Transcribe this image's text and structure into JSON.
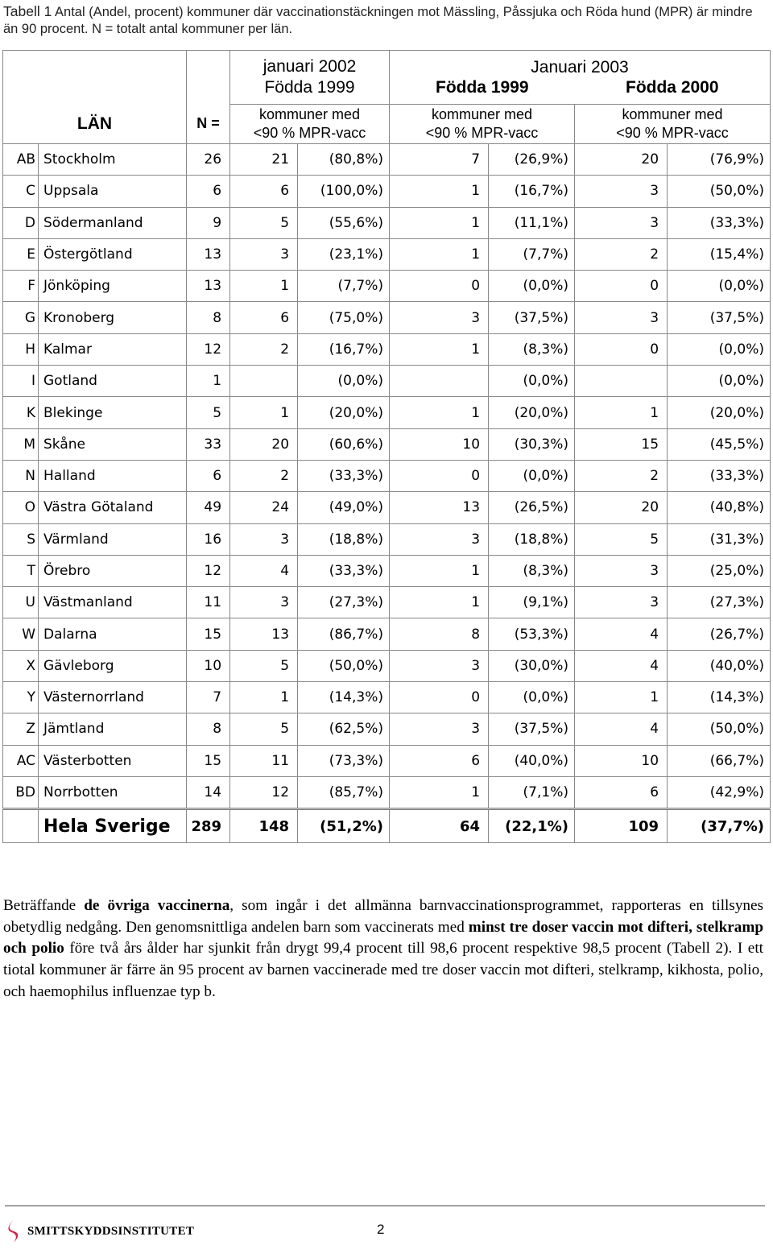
{
  "caption": {
    "label": "Tabell 1",
    "text": "Antal (Andel, procent) kommuner där vaccinationstäckningen mot Mässling, Påssjuka och Röda hund (MPR) är mindre än 90 procent. N = totalt antal kommuner per län."
  },
  "table": {
    "header": {
      "year_2002": "januari 2002",
      "year_2002_born": "Födda 1999",
      "year_2003": "Januari 2003",
      "year_2003_born_1999": "Födda 1999",
      "year_2003_born_2000": "Födda 2000",
      "lan": "LÄN",
      "n": "N =",
      "sub_line1": "kommuner med",
      "sub_line2": "<90 % MPR-vacc"
    },
    "rows": [
      {
        "code": "AB",
        "name": "Stockholm",
        "n": "26",
        "n1": "21",
        "p1": "(80,8%)",
        "n2": "7",
        "p2": "(26,9%)",
        "n3": "20",
        "p3": "(76,9%)"
      },
      {
        "code": "C",
        "name": "Uppsala",
        "n": "6",
        "n1": "6",
        "p1": "(100,0%)",
        "n2": "1",
        "p2": "(16,7%)",
        "n3": "3",
        "p3": "(50,0%)"
      },
      {
        "code": "D",
        "name": "Södermanland",
        "n": "9",
        "n1": "5",
        "p1": "(55,6%)",
        "n2": "1",
        "p2": "(11,1%)",
        "n3": "3",
        "p3": "(33,3%)"
      },
      {
        "code": "E",
        "name": "Östergötland",
        "n": "13",
        "n1": "3",
        "p1": "(23,1%)",
        "n2": "1",
        "p2": "(7,7%)",
        "n3": "2",
        "p3": "(15,4%)"
      },
      {
        "code": "F",
        "name": "Jönköping",
        "n": "13",
        "n1": "1",
        "p1": "(7,7%)",
        "n2": "0",
        "p2": "(0,0%)",
        "n3": "0",
        "p3": "(0,0%)"
      },
      {
        "code": "G",
        "name": "Kronoberg",
        "n": "8",
        "n1": "6",
        "p1": "(75,0%)",
        "n2": "3",
        "p2": "(37,5%)",
        "n3": "3",
        "p3": "(37,5%)"
      },
      {
        "code": "H",
        "name": "Kalmar",
        "n": "12",
        "n1": "2",
        "p1": "(16,7%)",
        "n2": "1",
        "p2": "(8,3%)",
        "n3": "0",
        "p3": "(0,0%)"
      },
      {
        "code": "I",
        "name": "Gotland",
        "n": "1",
        "n1": "",
        "p1": "(0,0%)",
        "n2": "",
        "p2": "(0,0%)",
        "n3": "",
        "p3": "(0,0%)"
      },
      {
        "code": "K",
        "name": "Blekinge",
        "n": "5",
        "n1": "1",
        "p1": "(20,0%)",
        "n2": "1",
        "p2": "(20,0%)",
        "n3": "1",
        "p3": "(20,0%)"
      },
      {
        "code": "M",
        "name": "Skåne",
        "n": "33",
        "n1": "20",
        "p1": "(60,6%)",
        "n2": "10",
        "p2": "(30,3%)",
        "n3": "15",
        "p3": "(45,5%)"
      },
      {
        "code": "N",
        "name": "Halland",
        "n": "6",
        "n1": "2",
        "p1": "(33,3%)",
        "n2": "0",
        "p2": "(0,0%)",
        "n3": "2",
        "p3": "(33,3%)"
      },
      {
        "code": "O",
        "name": "Västra Götaland",
        "n": "49",
        "n1": "24",
        "p1": "(49,0%)",
        "n2": "13",
        "p2": "(26,5%)",
        "n3": "20",
        "p3": "(40,8%)"
      },
      {
        "code": "S",
        "name": "Värmland",
        "n": "16",
        "n1": "3",
        "p1": "(18,8%)",
        "n2": "3",
        "p2": "(18,8%)",
        "n3": "5",
        "p3": "(31,3%)"
      },
      {
        "code": "T",
        "name": "Örebro",
        "n": "12",
        "n1": "4",
        "p1": "(33,3%)",
        "n2": "1",
        "p2": "(8,3%)",
        "n3": "3",
        "p3": "(25,0%)"
      },
      {
        "code": "U",
        "name": "Västmanland",
        "n": "11",
        "n1": "3",
        "p1": "(27,3%)",
        "n2": "1",
        "p2": "(9,1%)",
        "n3": "3",
        "p3": "(27,3%)"
      },
      {
        "code": "W",
        "name": "Dalarna",
        "n": "15",
        "n1": "13",
        "p1": "(86,7%)",
        "n2": "8",
        "p2": "(53,3%)",
        "n3": "4",
        "p3": "(26,7%)"
      },
      {
        "code": "X",
        "name": "Gävleborg",
        "n": "10",
        "n1": "5",
        "p1": "(50,0%)",
        "n2": "3",
        "p2": "(30,0%)",
        "n3": "4",
        "p3": "(40,0%)"
      },
      {
        "code": "Y",
        "name": "Västernorrland",
        "n": "7",
        "n1": "1",
        "p1": "(14,3%)",
        "n2": "0",
        "p2": "(0,0%)",
        "n3": "1",
        "p3": "(14,3%)"
      },
      {
        "code": "Z",
        "name": "Jämtland",
        "n": "8",
        "n1": "5",
        "p1": "(62,5%)",
        "n2": "3",
        "p2": "(37,5%)",
        "n3": "4",
        "p3": "(50,0%)"
      },
      {
        "code": "AC",
        "name": "Västerbotten",
        "n": "15",
        "n1": "11",
        "p1": "(73,3%)",
        "n2": "6",
        "p2": "(40,0%)",
        "n3": "10",
        "p3": "(66,7%)"
      },
      {
        "code": "BD",
        "name": "Norrbotten",
        "n": "14",
        "n1": "12",
        "p1": "(85,7%)",
        "n2": "1",
        "p2": "(7,1%)",
        "n3": "6",
        "p3": "(42,9%)"
      }
    ],
    "total": {
      "code": "",
      "name": "Hela Sverige",
      "n": "289",
      "n1": "148",
      "p1": "(51,2%)",
      "n2": "64",
      "p2": "(22,1%)",
      "n3": "109",
      "p3": "(37,7%)"
    }
  },
  "paragraph": {
    "s1": "Beträffande ",
    "s2": "de övriga vaccinerna",
    "s3": ", som ingår i det allmänna barnvaccinationsprogrammet, rapporteras en tillsynes obetydlig nedgång. Den genomsnittliga andelen barn som vaccinerats med ",
    "s4": "minst tre doser vaccin mot difteri, stelkramp och polio",
    "s5": " före två års ålder har sjunkit från drygt 99,4 procent till 98,6 procent respektive 98,5 procent (Tabell 2). I ett tiotal kommuner är färre än 95 procent av barnen vaccinerade med tre doser vaccin mot difteri, stelkramp, kikhosta, polio, och haemophilus influenzae typ b."
  },
  "footer": {
    "logo_text": "SMITTSKYDDSINSTITUTET",
    "page_number": "2",
    "logo_color": "#d4224b"
  }
}
